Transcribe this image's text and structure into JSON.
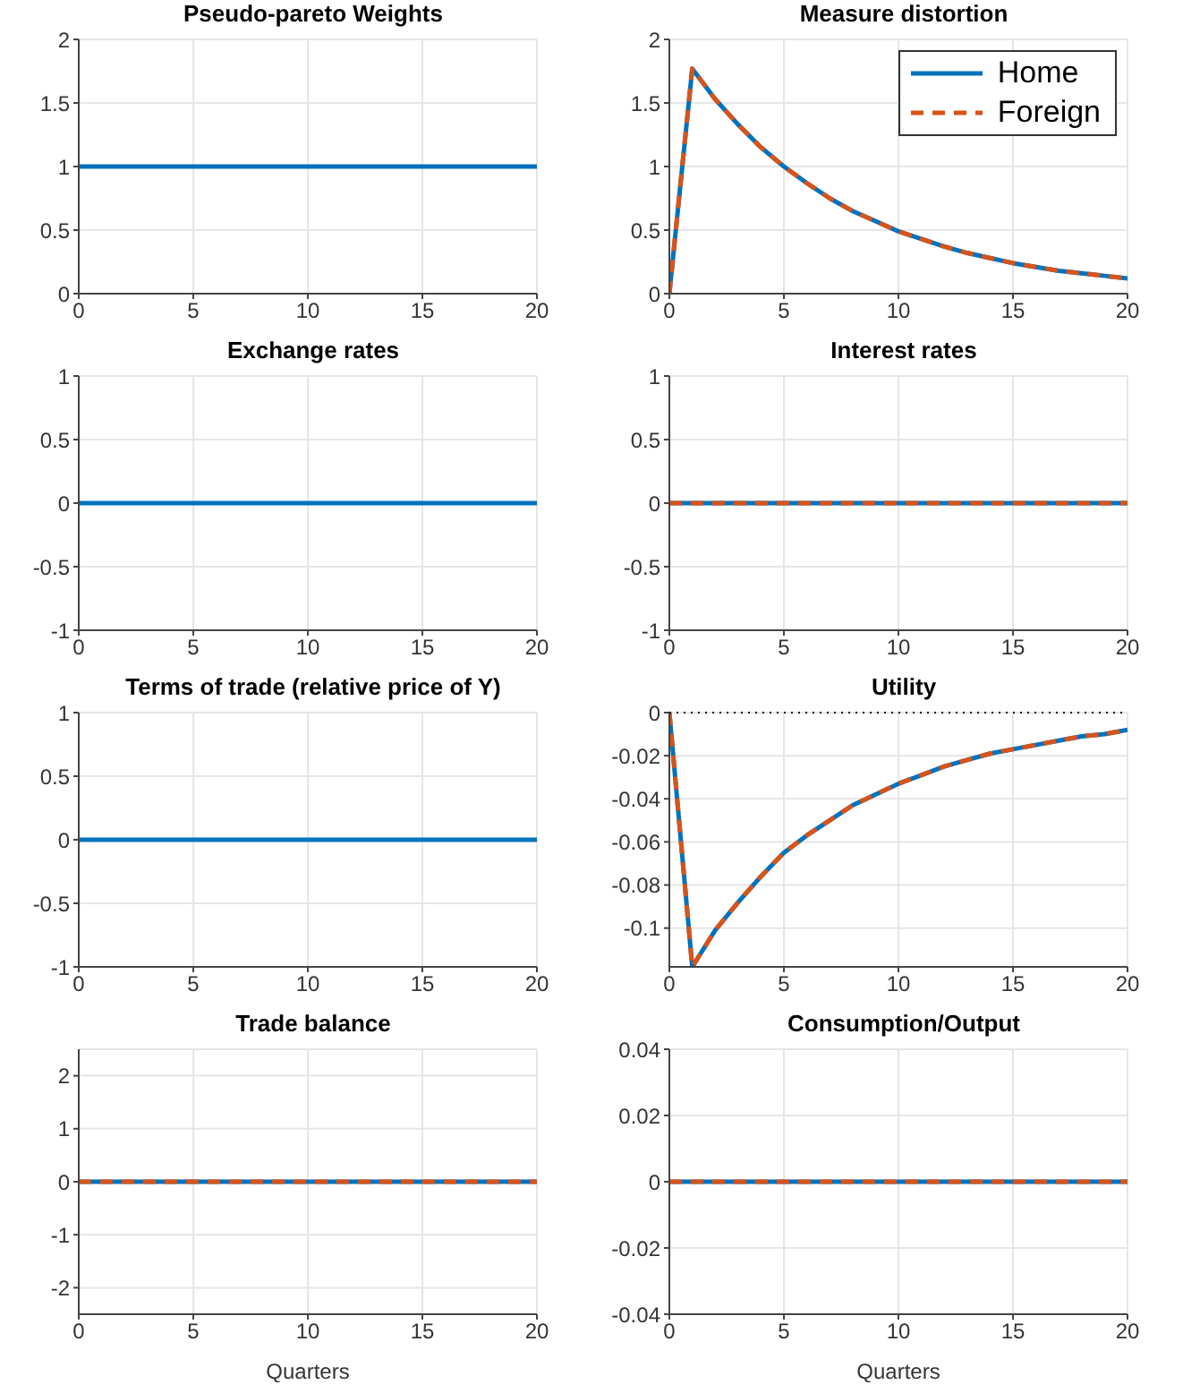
{
  "chart_data": [
    {
      "type": "line",
      "title": "Pseudo-pareto Weights",
      "xlim": [
        0,
        20
      ],
      "xticks": [
        0,
        5,
        10,
        15,
        20
      ],
      "ylim": [
        0,
        2
      ],
      "yticks": [
        0,
        0.5,
        1,
        1.5,
        2
      ],
      "grid": true,
      "marker": "none",
      "series": [
        {
          "color": "#0072bd",
          "line_style": "solid",
          "x": [
            0,
            20
          ],
          "values": [
            1,
            1
          ]
        }
      ]
    },
    {
      "type": "line",
      "title": "Measure distortion",
      "xlim": [
        0,
        20
      ],
      "xticks": [
        0,
        5,
        10,
        15,
        20
      ],
      "ylim": [
        0,
        2
      ],
      "yticks": [
        0,
        0.5,
        1,
        1.5,
        2
      ],
      "grid": true,
      "marker": "none",
      "legend": "top right",
      "series": [
        {
          "name": "Home",
          "color": "#0072bd",
          "line_style": "solid",
          "x": [
            0,
            1,
            2,
            3,
            4,
            5,
            6,
            7,
            8,
            9,
            10,
            11,
            12,
            13,
            14,
            15,
            16,
            17,
            18,
            19,
            20
          ],
          "values": [
            0,
            1.77,
            1.53,
            1.33,
            1.15,
            1.0,
            0.87,
            0.75,
            0.65,
            0.57,
            0.49,
            0.43,
            0.37,
            0.32,
            0.28,
            0.24,
            0.21,
            0.18,
            0.16,
            0.14,
            0.12
          ]
        },
        {
          "name": "Foreign",
          "color": "#d95319",
          "line_style": "dashed",
          "x": [
            0,
            1,
            2,
            3,
            4,
            5,
            6,
            7,
            8,
            9,
            10,
            11,
            12,
            13,
            14,
            15,
            16,
            17,
            18,
            19,
            20
          ],
          "values": [
            0,
            1.77,
            1.53,
            1.33,
            1.15,
            1.0,
            0.87,
            0.75,
            0.65,
            0.57,
            0.49,
            0.43,
            0.37,
            0.32,
            0.28,
            0.24,
            0.21,
            0.18,
            0.16,
            0.14,
            0.12
          ]
        }
      ]
    },
    {
      "type": "line",
      "title": "Exchange rates",
      "xlim": [
        0,
        20
      ],
      "xticks": [
        0,
        5,
        10,
        15,
        20
      ],
      "ylim": [
        -1,
        1
      ],
      "yticks": [
        -1,
        -0.5,
        0,
        0.5,
        1
      ],
      "grid": true,
      "marker": "none",
      "series": [
        {
          "color": "#0072bd",
          "line_style": "solid",
          "x": [
            0,
            20
          ],
          "values": [
            0,
            0
          ]
        }
      ]
    },
    {
      "type": "line",
      "title": "Interest rates",
      "xlim": [
        0,
        20
      ],
      "xticks": [
        0,
        5,
        10,
        15,
        20
      ],
      "ylim": [
        -1,
        1
      ],
      "yticks": [
        -1,
        -0.5,
        0,
        0.5,
        1
      ],
      "grid": true,
      "marker": "none",
      "series": [
        {
          "color": "#0072bd",
          "line_style": "solid",
          "x": [
            0,
            20
          ],
          "values": [
            0,
            0
          ]
        },
        {
          "color": "#d95319",
          "line_style": "dashed",
          "x": [
            0,
            20
          ],
          "values": [
            0,
            0
          ]
        }
      ]
    },
    {
      "type": "line",
      "title": "Terms of trade (relative price of Y)",
      "xlim": [
        0,
        20
      ],
      "xticks": [
        0,
        5,
        10,
        15,
        20
      ],
      "ylim": [
        -1,
        1
      ],
      "yticks": [
        -1,
        -0.5,
        0,
        0.5,
        1
      ],
      "grid": true,
      "marker": "none",
      "series": [
        {
          "color": "#0072bd",
          "line_style": "solid",
          "x": [
            0,
            20
          ],
          "values": [
            0,
            0
          ]
        }
      ]
    },
    {
      "type": "line",
      "title": "Utility",
      "xlim": [
        0,
        20
      ],
      "xticks": [
        0,
        5,
        10,
        15,
        20
      ],
      "ylim": [
        -0.118,
        0
      ],
      "yticks": [
        -0.1,
        -0.08,
        -0.06,
        -0.04,
        -0.02,
        0
      ],
      "grid": true,
      "marker": "none",
      "series": [
        {
          "color": "#0072bd",
          "line_style": "solid",
          "x": [
            0,
            1,
            2,
            3,
            4,
            5,
            6,
            7,
            8,
            9,
            10,
            11,
            12,
            13,
            14,
            15,
            16,
            17,
            18,
            19,
            20
          ],
          "values": [
            0,
            -0.118,
            -0.101,
            -0.088,
            -0.076,
            -0.065,
            -0.057,
            -0.05,
            -0.043,
            -0.038,
            -0.033,
            -0.029,
            -0.025,
            -0.022,
            -0.019,
            -0.017,
            -0.015,
            -0.013,
            -0.011,
            -0.01,
            -0.008
          ]
        },
        {
          "color": "#d95319",
          "line_style": "dashed",
          "x": [
            0,
            1,
            2,
            3,
            4,
            5,
            6,
            7,
            8,
            9,
            10,
            11,
            12,
            13,
            14,
            15,
            16,
            17,
            18,
            19,
            20
          ],
          "values": [
            0,
            -0.118,
            -0.101,
            -0.088,
            -0.076,
            -0.065,
            -0.057,
            -0.05,
            -0.043,
            -0.038,
            -0.033,
            -0.029,
            -0.025,
            -0.022,
            -0.019,
            -0.017,
            -0.015,
            -0.013,
            -0.011,
            -0.01,
            -0.008
          ]
        }
      ],
      "ref_lines": [
        {
          "axis": "y",
          "value": 0,
          "color": "#000000",
          "line_style": "dotted"
        }
      ]
    },
    {
      "type": "line",
      "title": "Trade balance",
      "xlabel": "Quarters",
      "xlim": [
        0,
        20
      ],
      "xticks": [
        0,
        5,
        10,
        15,
        20
      ],
      "ylim": [
        -2.5,
        2.5
      ],
      "yticks": [
        -2,
        -1,
        0,
        1,
        2
      ],
      "grid": true,
      "marker": "none",
      "series": [
        {
          "color": "#0072bd",
          "line_style": "solid",
          "x": [
            0,
            20
          ],
          "values": [
            0,
            0
          ]
        },
        {
          "color": "#d95319",
          "line_style": "dashed",
          "x": [
            0,
            20
          ],
          "values": [
            0,
            0
          ]
        }
      ]
    },
    {
      "type": "line",
      "title": "Consumption/Output",
      "xlabel": "Quarters",
      "xlim": [
        0,
        20
      ],
      "xticks": [
        0,
        5,
        10,
        15,
        20
      ],
      "ylim": [
        -0.04,
        0.04
      ],
      "yticks": [
        -0.04,
        -0.02,
        0,
        0.02,
        0.04
      ],
      "grid": true,
      "marker": "none",
      "series": [
        {
          "color": "#0072bd",
          "line_style": "solid",
          "x": [
            0,
            20
          ],
          "values": [
            0,
            0
          ]
        },
        {
          "color": "#d95319",
          "line_style": "dashed",
          "x": [
            0,
            20
          ],
          "values": [
            0,
            0
          ]
        }
      ]
    }
  ]
}
